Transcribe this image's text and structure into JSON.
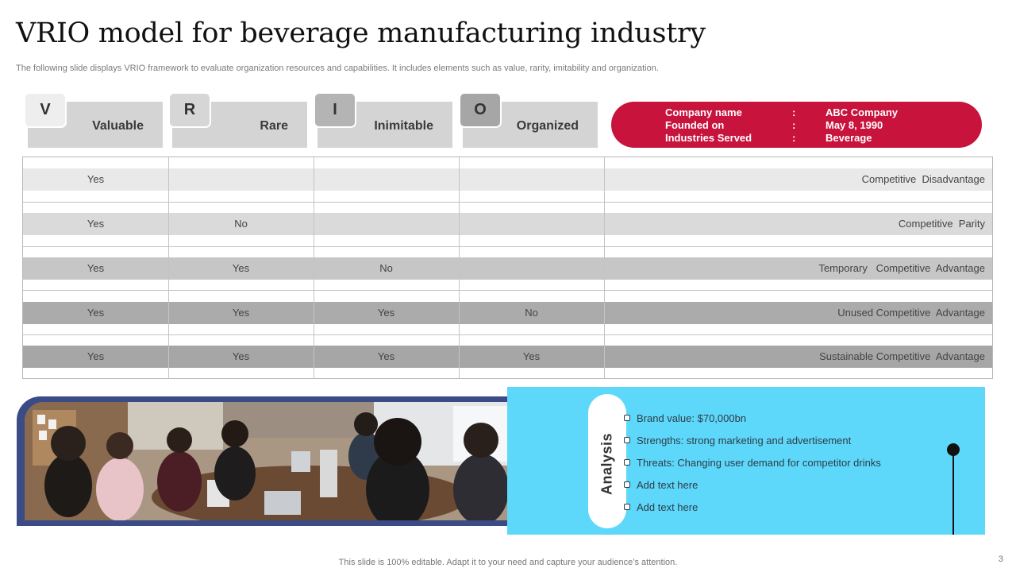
{
  "slide": {
    "title": "VRIO model for beverage manufacturing industry",
    "subtitle": "The following slide displays VRIO framework to evaluate organization resources and capabilities. It includes elements such as value, rarity, imitability and organization.",
    "footer": "This slide is 100% editable. Adapt it to your need and capture your audience’s attention.",
    "page_number": "3"
  },
  "headers": [
    {
      "letter": "V",
      "label": "Valuable"
    },
    {
      "letter": "R",
      "label": "Rare"
    },
    {
      "letter": "I",
      "label": "Inimitable"
    },
    {
      "letter": "O",
      "label": "Organized"
    }
  ],
  "company": [
    {
      "key": "Company name",
      "sep": ":",
      "value": "ABC Company"
    },
    {
      "key": "Founded on",
      "sep": ":",
      "value": "May 8, 1990"
    },
    {
      "key": "Industries Served",
      "sep": ":",
      "value": "Beverage"
    }
  ],
  "rows": [
    {
      "cells": [
        "Yes",
        "",
        "",
        ""
      ],
      "result": "Competitive  Disadvantage"
    },
    {
      "cells": [
        "Yes",
        "No",
        "",
        ""
      ],
      "result": "Competitive  Parity"
    },
    {
      "cells": [
        "Yes",
        "Yes",
        "No",
        ""
      ],
      "result": "Temporary   Competitive  Advantage"
    },
    {
      "cells": [
        "Yes",
        "Yes",
        "Yes",
        "No"
      ],
      "result": "Unused Competitive  Advantage"
    },
    {
      "cells": [
        "Yes",
        "Yes",
        "Yes",
        "Yes"
      ],
      "result": "Sustainable Competitive  Advantage"
    }
  ],
  "analysis": {
    "label": "Analysis",
    "bullets": [
      "Brand value:  $70,000bn",
      "Strengths: strong marketing and advertisement",
      "Threats: Changing  user demand  for competitor drinks",
      "Add text here",
      "Add text here"
    ]
  },
  "colors": {
    "accent_red": "#c8133d",
    "panel_blue": "#5dd8fb",
    "frame_navy": "#3a4b85",
    "row_bands": [
      "#e9e9e9",
      "#dadada",
      "#c6c6c6",
      "#ababab",
      "#a6a6a6"
    ],
    "badges": [
      "#eeeeee",
      "#d6d6d6",
      "#b4b4b4",
      "#a6a6a6"
    ]
  },
  "image": {
    "alt": "Team meeting around a conference table"
  }
}
